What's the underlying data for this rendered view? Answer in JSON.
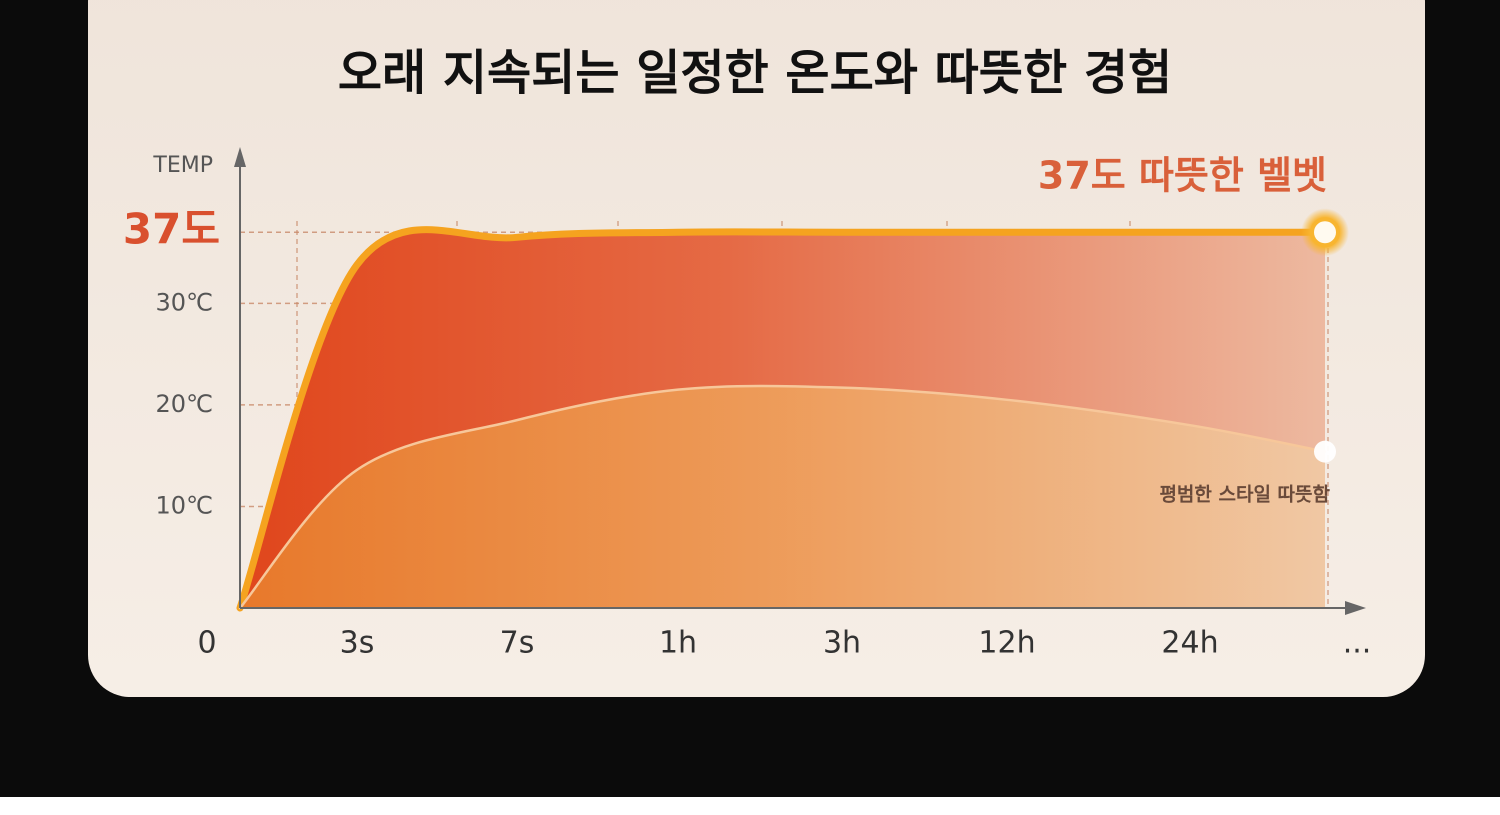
{
  "chart_data": {
    "type": "area",
    "title": "오래 지속되는 일정한 온도와 따뜻한 경험",
    "y_label": "TEMP",
    "categories": [
      "0",
      "3s",
      "7s",
      "1h",
      "3h",
      "12h",
      "24h",
      "..."
    ],
    "ylim": [
      0,
      45
    ],
    "yticks": [
      {
        "value": 10,
        "label": "10℃"
      },
      {
        "value": 20,
        "label": "20℃"
      },
      {
        "value": 30,
        "label": "30℃"
      },
      {
        "value": 37,
        "label": "37도"
      }
    ],
    "grid": true,
    "series": [
      {
        "name": "37도 따뜻한 벨벳",
        "color": "#f5a31f",
        "values": [
          0,
          33.8,
          36.5,
          37,
          37,
          37,
          37,
          37
        ]
      },
      {
        "name": "평범한 스타일 따뜻함",
        "color": "#f0a24a",
        "values": [
          0,
          13.6,
          18.5,
          21.5,
          21.7,
          20.5,
          18,
          15.4
        ]
      }
    ]
  }
}
